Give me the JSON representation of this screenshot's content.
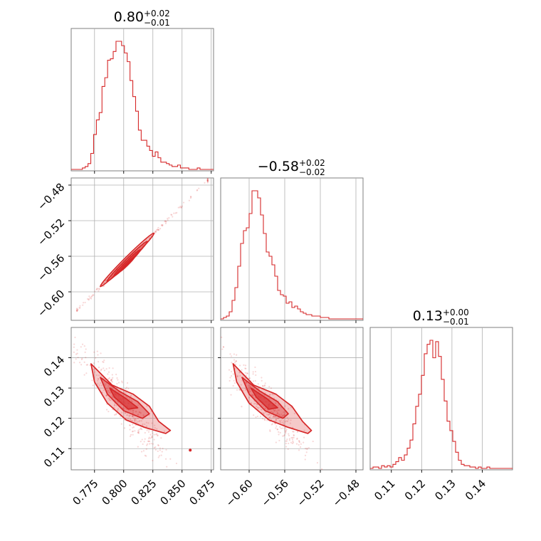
{
  "chart_data": {
    "type": "corner",
    "color": "#d62728",
    "params": [
      {
        "range": [
          0.755,
          0.877
        ],
        "ticks": [
          0.775,
          0.8,
          0.825,
          0.85,
          0.875
        ],
        "tick_labels": [
          "0.775",
          "0.800",
          "0.825",
          "0.850",
          "0.875"
        ]
      },
      {
        "range": [
          -0.632,
          -0.472
        ],
        "ticks": [
          -0.6,
          -0.56,
          -0.52,
          -0.48
        ],
        "tick_labels": [
          "−0.60",
          "−0.56",
          "−0.52",
          "−0.48"
        ]
      },
      {
        "range": [
          0.103,
          0.15
        ],
        "ticks": [
          0.11,
          0.12,
          0.13,
          0.14
        ],
        "tick_labels": [
          "0.11",
          "0.12",
          "0.13",
          "0.14"
        ]
      }
    ],
    "titles": [
      {
        "value": "0.80",
        "plus": "+0.02",
        "minus": "−0.01"
      },
      {
        "value": "−0.58",
        "plus": "+0.02",
        "minus": "−0.02"
      },
      {
        "value": "0.13",
        "plus": "+0.00",
        "minus": "−0.01"
      }
    ],
    "histograms": [
      {
        "x_start": 0.755,
        "bin_width": 0.0024,
        "counts": [
          0,
          0,
          0,
          0,
          1,
          2,
          4,
          11,
          24,
          34,
          39,
          57,
          63,
          75,
          76,
          81,
          88,
          88,
          85,
          80,
          74,
          61,
          50,
          40,
          27,
          20,
          20,
          16,
          13,
          9,
          12,
          8,
          5,
          5,
          4,
          3,
          2,
          2,
          3,
          1,
          1,
          1,
          0,
          0,
          0,
          1,
          0,
          0,
          0,
          0,
          0
        ]
      },
      {
        "x_start": -0.632,
        "bin_width": 0.0032,
        "counts": [
          0,
          1,
          2,
          5,
          13,
          22,
          37,
          53,
          62,
          64,
          74,
          90,
          90,
          85,
          73,
          60,
          47,
          44,
          38,
          30,
          20,
          17,
          16,
          11,
          12,
          8,
          9,
          7,
          5,
          4,
          3,
          3,
          2,
          2,
          2,
          1,
          1,
          1,
          0,
          0,
          0,
          0,
          0,
          0,
          0,
          0,
          0,
          0,
          0,
          0
        ]
      },
      {
        "x_start": 0.103,
        "bin_width": 0.00094,
        "counts": [
          0,
          1,
          1,
          0,
          2,
          1,
          2,
          1,
          3,
          5,
          8,
          6,
          10,
          15,
          21,
          33,
          46,
          55,
          69,
          85,
          92,
          95,
          82,
          94,
          83,
          66,
          50,
          35,
          28,
          20,
          12,
          6,
          3,
          2,
          2,
          1,
          1,
          0,
          1,
          0,
          0,
          1,
          0,
          0,
          0,
          0,
          0,
          0,
          0,
          0
        ]
      }
    ]
  }
}
